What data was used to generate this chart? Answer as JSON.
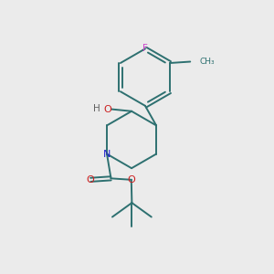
{
  "bg_color": "#ebebeb",
  "bond_color": "#2d7070",
  "N_color": "#2222cc",
  "O_color": "#cc2020",
  "F_color": "#cc44cc",
  "H_color": "#606060",
  "line_width": 1.4,
  "fig_width": 3.0,
  "fig_height": 3.0,
  "dpi": 100,
  "xlim": [
    0,
    10
  ],
  "ylim": [
    0,
    10
  ]
}
